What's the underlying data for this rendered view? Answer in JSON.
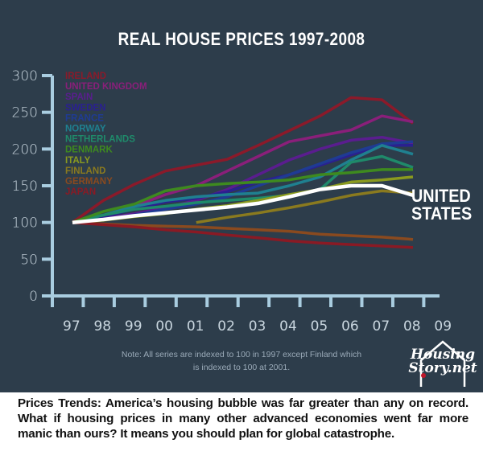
{
  "title": "REAL HOUSE PRICES 1997-2008",
  "note": "Note: All series are indexed to 100 in 1997 except Finland which is indexed to 100 at 2001.",
  "logo": {
    "line1": "Housing",
    "line2": "Story.net"
  },
  "caption": "Prices Trends: America’s housing bubble was far greater than any on record. What if housing prices in many other advanced economies went far more manic than ours? It means you should plan for global catastrophe.",
  "us_label": {
    "line1": "UNITED",
    "line2": "STATES"
  },
  "colors": {
    "background": "#2d3d4b",
    "axis": "#a9cde0",
    "tick_text": "#c9d6df"
  },
  "chart_data": {
    "type": "line",
    "title": "REAL HOUSE PRICES 1997-2008",
    "xlabel": "",
    "ylabel": "",
    "x": [
      "97",
      "98",
      "99",
      "00",
      "01",
      "02",
      "03",
      "04",
      "05",
      "06",
      "07",
      "08"
    ],
    "x_ticks": [
      "97",
      "98",
      "99",
      "00",
      "01",
      "02",
      "03",
      "04",
      "05",
      "06",
      "07",
      "08",
      "09"
    ],
    "y_ticks": [
      0,
      50,
      100,
      150,
      200,
      250,
      300
    ],
    "ylim": [
      0,
      300
    ],
    "grid": false,
    "legend": "top-left",
    "series": [
      {
        "name": "IRELAND",
        "color": "#8b1a2a",
        "values": [
          100,
          130,
          152,
          170,
          178,
          186,
          205,
          225,
          245,
          270,
          267,
          235
        ]
      },
      {
        "name": "UNITED KINGDOM",
        "color": "#8a1f7a",
        "values": [
          100,
          110,
          122,
          138,
          150,
          170,
          190,
          210,
          218,
          226,
          245,
          237
        ]
      },
      {
        "name": "SPAIN",
        "color": "#5a1d8f",
        "values": [
          100,
          105,
          112,
          120,
          130,
          145,
          165,
          185,
          200,
          212,
          216,
          208
        ]
      },
      {
        "name": "SWEDEN",
        "color": "#2a2090",
        "values": [
          100,
          108,
          118,
          128,
          133,
          142,
          155,
          165,
          178,
          192,
          205,
          205
        ]
      },
      {
        "name": "FRANCE",
        "color": "#1f3b94",
        "values": [
          100,
          104,
          110,
          118,
          125,
          135,
          150,
          165,
          180,
          195,
          207,
          210
        ]
      },
      {
        "name": "NORWAY",
        "color": "#1f8090",
        "values": [
          100,
          110,
          122,
          130,
          135,
          138,
          140,
          150,
          162,
          185,
          205,
          193
        ]
      },
      {
        "name": "NETHERLANDS",
        "color": "#1f8a6a",
        "values": [
          100,
          110,
          118,
          122,
          127,
          130,
          133,
          137,
          145,
          182,
          190,
          175
        ]
      },
      {
        "name": "DENMARK",
        "color": "#3e8a1f",
        "values": [
          100,
          115,
          125,
          143,
          150,
          153,
          155,
          158,
          165,
          168,
          172,
          172
        ]
      },
      {
        "name": "ITALY",
        "color": "#8a9a1f",
        "values": [
          100,
          103,
          108,
          112,
          118,
          123,
          130,
          138,
          145,
          155,
          158,
          162
        ]
      },
      {
        "name": "FINLAND",
        "color": "#8a7a1f",
        "values": [
          null,
          null,
          null,
          null,
          100,
          107,
          113,
          120,
          128,
          137,
          143,
          140
        ]
      },
      {
        "name": "GERMANY",
        "color": "#8a4a1f",
        "values": [
          100,
          98,
          96,
          95,
          94,
          92,
          90,
          88,
          84,
          82,
          80,
          77
        ]
      },
      {
        "name": "JAPAN",
        "color": "#8a1a24",
        "values": [
          100,
          97,
          94,
          90,
          87,
          83,
          79,
          75,
          72,
          70,
          68,
          66
        ]
      },
      {
        "name": "UNITED STATES",
        "color": "#ffffff",
        "values": [
          100,
          104,
          109,
          113,
          117,
          121,
          126,
          135,
          145,
          150,
          150,
          137
        ]
      }
    ]
  }
}
